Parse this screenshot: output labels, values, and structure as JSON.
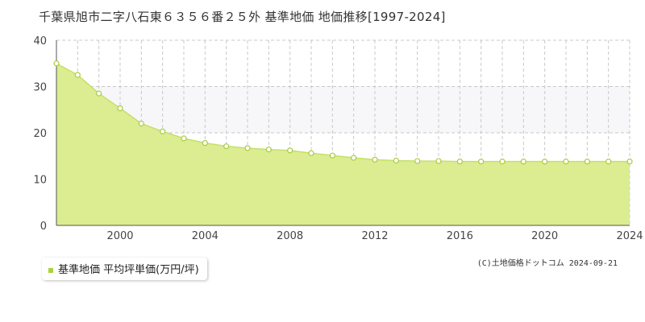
{
  "title": "千葉県旭市二字八石東６３５６番２５外 基準地価 地価推移[1997-2024]",
  "legend": {
    "label": "基準地価 平均坪単価(万円/坪)"
  },
  "copyright": "(C)土地価格ドットコム 2024-09-21",
  "colors": {
    "fill": "#dbec91",
    "line": "#c5e06a",
    "marker_stroke": "#a8cc3f",
    "legend_swatch": "#a8d43a"
  },
  "chart_data": {
    "type": "area",
    "series": [
      {
        "name": "基準地価 平均坪単価(万円/坪)",
        "x": [
          1997,
          1998,
          1999,
          2000,
          2001,
          2002,
          2003,
          2004,
          2005,
          2006,
          2007,
          2008,
          2009,
          2010,
          2011,
          2012,
          2013,
          2014,
          2015,
          2016,
          2017,
          2018,
          2019,
          2020,
          2021,
          2022,
          2023,
          2024
        ],
        "values": [
          35.0,
          32.5,
          28.5,
          25.3,
          22.0,
          20.3,
          18.8,
          17.8,
          17.1,
          16.7,
          16.4,
          16.2,
          15.6,
          15.1,
          14.6,
          14.2,
          14.0,
          13.9,
          13.9,
          13.8,
          13.8,
          13.8,
          13.8,
          13.8,
          13.8,
          13.8,
          13.8,
          13.8
        ]
      }
    ],
    "xlim": [
      1997,
      2024
    ],
    "ylim": [
      0,
      40
    ],
    "x_ticks": [
      "2000",
      "2004",
      "2008",
      "2012",
      "2016",
      "2020",
      "2024"
    ],
    "y_ticks": [
      "0",
      "10",
      "20",
      "30",
      "40"
    ],
    "grid": true,
    "legend_position": "bottom-left"
  }
}
